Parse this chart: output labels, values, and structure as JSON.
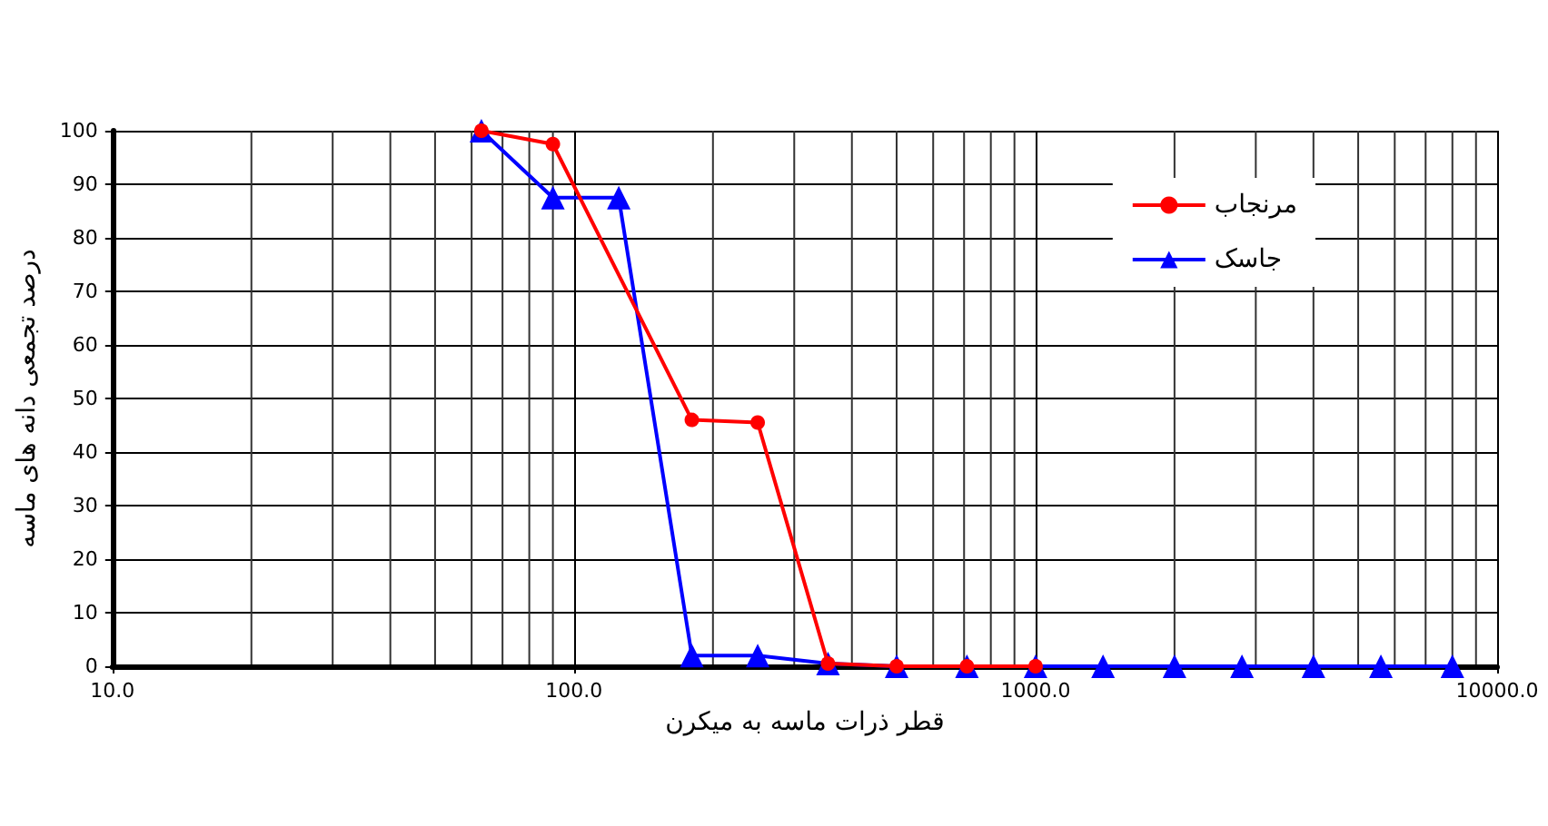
{
  "chart_data": {
    "type": "line",
    "xlabel": "قطر ذرات ماسه به میکرن",
    "ylabel": "درصد تجمعی دانه های ماسه",
    "log": "x",
    "xlim": [
      10,
      10000
    ],
    "xticks": [
      {
        "value": 10,
        "label": "10.0"
      },
      {
        "value": 100,
        "label": "100.0"
      },
      {
        "value": 1000,
        "label": "1000.0"
      },
      {
        "value": 10000,
        "label": "10000.0"
      }
    ],
    "ylim": [
      0,
      100
    ],
    "yticks": [
      0,
      10,
      20,
      30,
      40,
      50,
      60,
      70,
      80,
      90,
      100
    ],
    "grid": true,
    "legend": "top right",
    "line_style": "solid",
    "series": [
      {
        "name": "مرنجاب",
        "color": "#ff0000",
        "marker": "circle",
        "x": [
          63,
          90,
          180,
          250,
          355,
          500,
          710,
          1000
        ],
        "values": [
          100,
          97.5,
          46,
          45.5,
          0.5,
          0,
          0,
          0
        ]
      },
      {
        "name": "جاسک",
        "color": "#0000ff",
        "marker": "triangle",
        "x": [
          63,
          90,
          125,
          180,
          250,
          355,
          500,
          710,
          1000,
          1400,
          2000,
          2800,
          4000,
          5600,
          8000
        ],
        "values": [
          100,
          87.5,
          87.5,
          2,
          2,
          0.5,
          0,
          0,
          0,
          0,
          0,
          0,
          0,
          0,
          0
        ]
      }
    ]
  }
}
